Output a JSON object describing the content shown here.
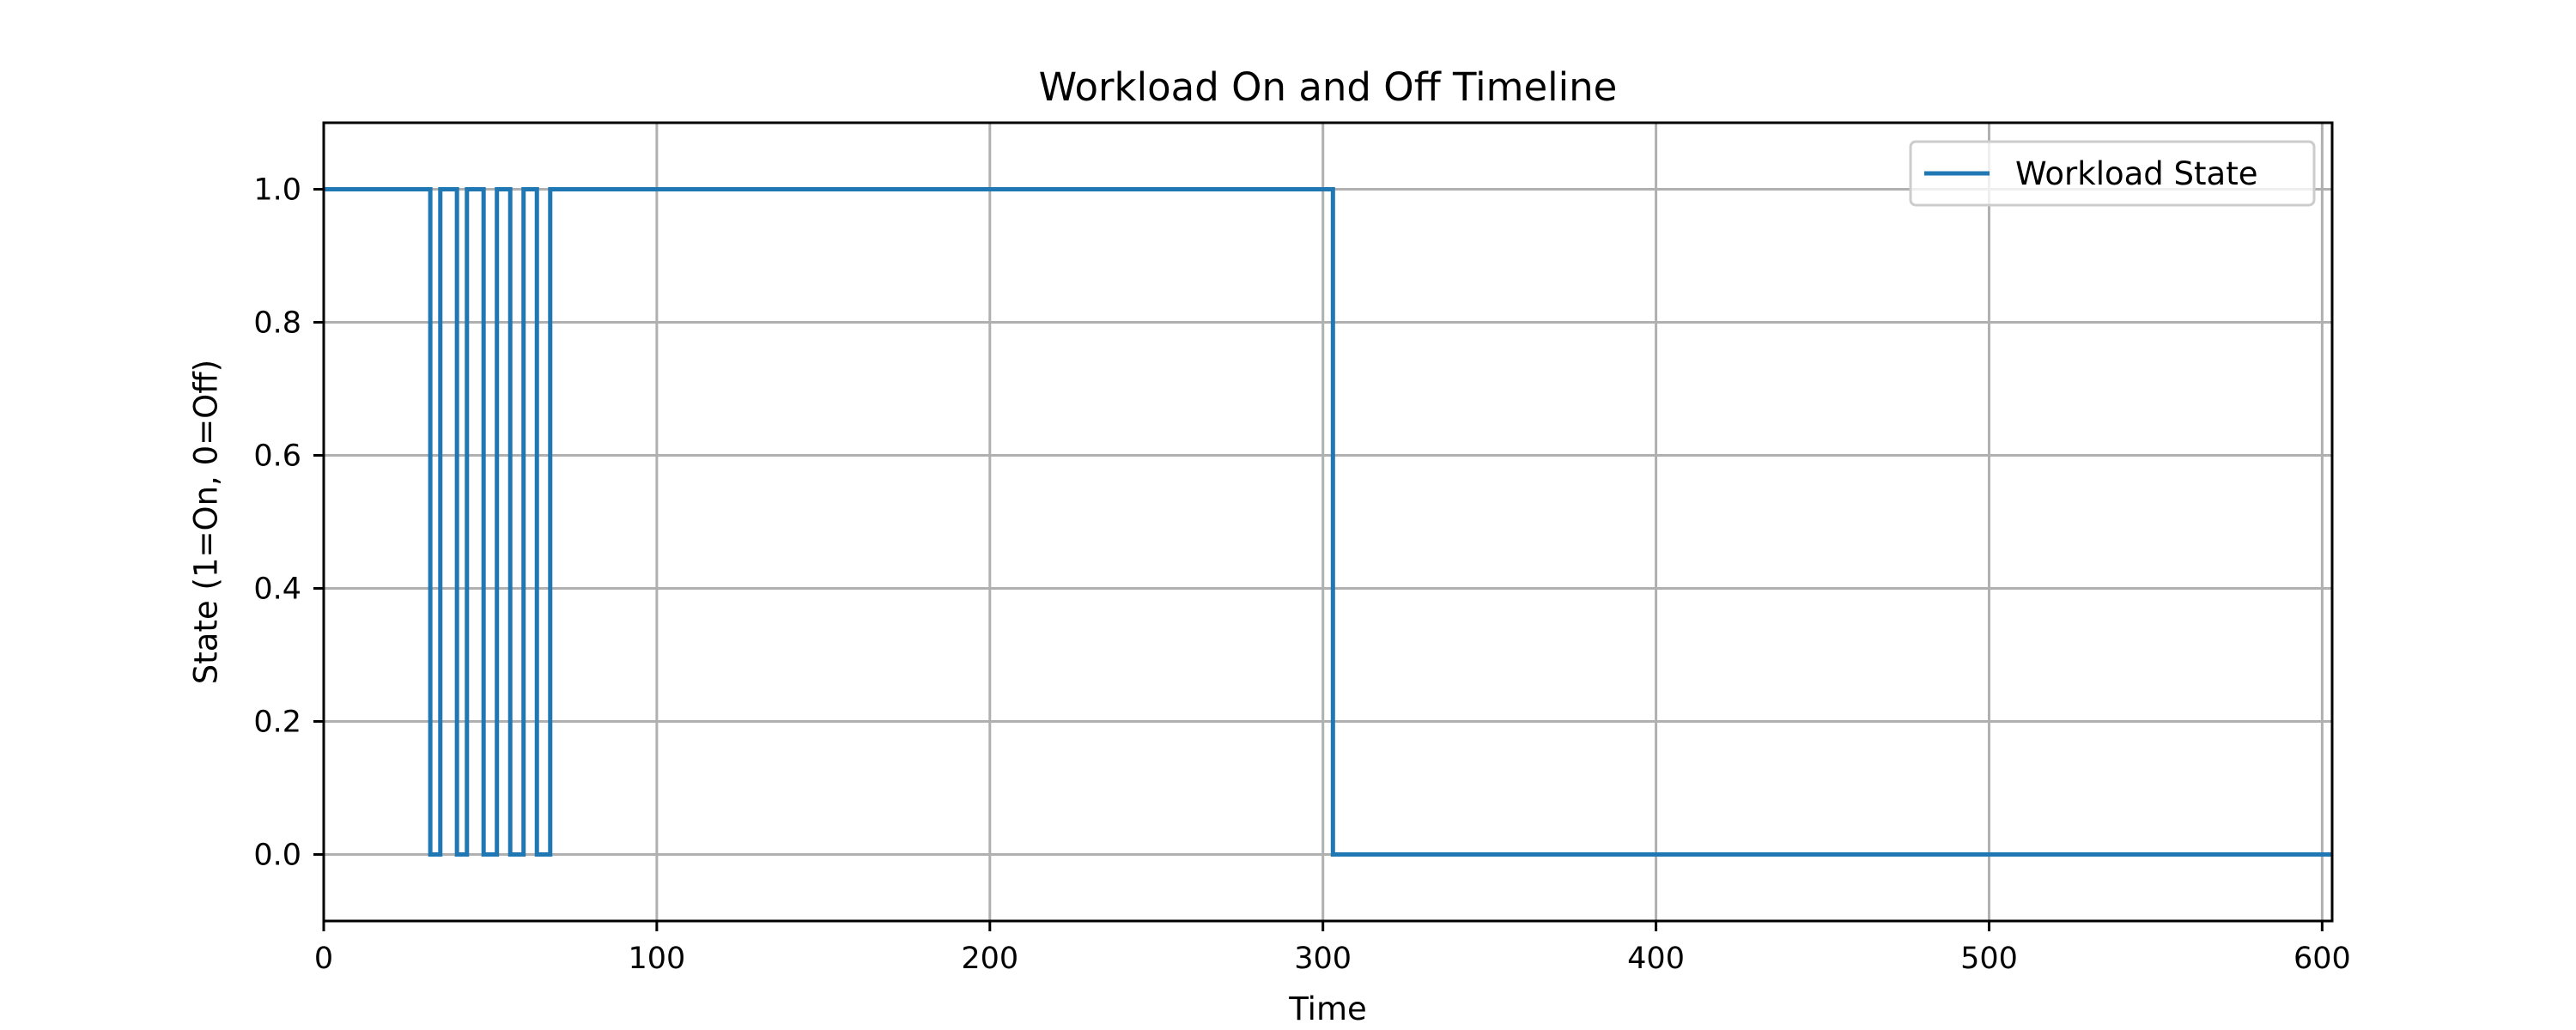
{
  "chart_data": {
    "type": "line",
    "title": "Workload On and Off Timeline",
    "xlabel": "Time",
    "ylabel": "State (1=On, 0=Off)",
    "xlim": [
      0,
      603
    ],
    "ylim": [
      -0.1,
      1.1
    ],
    "x_ticks": [
      0,
      100,
      200,
      300,
      400,
      500,
      600
    ],
    "y_ticks": [
      0.0,
      0.2,
      0.4,
      0.6,
      0.8,
      1.0
    ],
    "x_tick_labels": [
      "0",
      "100",
      "200",
      "300",
      "400",
      "500",
      "600"
    ],
    "y_tick_labels": [
      "0.0",
      "0.2",
      "0.4",
      "0.6",
      "0.8",
      "1.0"
    ],
    "grid": true,
    "legend": {
      "position": "top-right",
      "entries": [
        "Workload State"
      ]
    },
    "series": [
      {
        "name": "Workload State",
        "color": "#1f77b4",
        "step": "post",
        "points": [
          [
            0,
            1
          ],
          [
            32,
            0
          ],
          [
            35,
            1
          ],
          [
            40,
            0
          ],
          [
            43,
            1
          ],
          [
            48,
            0
          ],
          [
            52,
            1
          ],
          [
            56,
            0
          ],
          [
            60,
            1
          ],
          [
            64,
            0
          ],
          [
            68,
            1
          ],
          [
            303,
            0
          ],
          [
            603,
            0
          ]
        ]
      }
    ]
  }
}
